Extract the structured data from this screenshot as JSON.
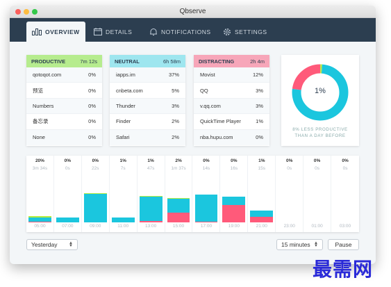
{
  "window": {
    "title": "Qbserve",
    "colors": {
      "close": "#fc605c",
      "minimize": "#fdbc40",
      "zoom": "#34c84a"
    }
  },
  "tabs": [
    {
      "label": "OVERVIEW",
      "icon": "bar-chart-icon"
    },
    {
      "label": "DETAILS",
      "icon": "calendar-icon"
    },
    {
      "label": "NOTIFICATIONS",
      "icon": "bell-icon"
    },
    {
      "label": "SETTINGS",
      "icon": "gear-icon"
    }
  ],
  "categories": [
    {
      "name": "PRODUCTIVE",
      "time": "7m 12s",
      "color": "#b6ec8e",
      "items": [
        {
          "name": "qotoqot.com",
          "pct": "0%"
        },
        {
          "name": "预览",
          "pct": "0%"
        },
        {
          "name": "Numbers",
          "pct": "0%"
        },
        {
          "name": "备忘录",
          "pct": "0%"
        },
        {
          "name": "None",
          "pct": "0%"
        }
      ]
    },
    {
      "name": "NEUTRAL",
      "time": "6h 58m",
      "color": "#9ee6ef",
      "items": [
        {
          "name": "iapps.im",
          "pct": "37%"
        },
        {
          "name": "cnbeta.com",
          "pct": "5%"
        },
        {
          "name": "Thunder",
          "pct": "3%"
        },
        {
          "name": "Finder",
          "pct": "2%"
        },
        {
          "name": "Safari",
          "pct": "2%"
        }
      ]
    },
    {
      "name": "DISTRACTING",
      "time": "2h 4m",
      "color": "#f7a6b9",
      "items": [
        {
          "name": "Movist",
          "pct": "12%"
        },
        {
          "name": "QQ",
          "pct": "3%"
        },
        {
          "name": "v.qq.com",
          "pct": "3%"
        },
        {
          "name": "QuickTime Player",
          "pct": "1%"
        },
        {
          "name": "nba.hupu.com",
          "pct": "0%"
        }
      ]
    }
  ],
  "summary": {
    "percent": "1%",
    "caption_line1": "8% LESS PRODUCTIVE",
    "caption_line2": "THAN A DAY BEFORE",
    "share": {
      "neutral": 0.76,
      "distracting": 0.23,
      "productive": 0.01
    },
    "colors": {
      "neutral": "#1bc6de",
      "distracting": "#ff5a7a",
      "productive": "#b6ec3e"
    }
  },
  "timeline": {
    "slots": [
      {
        "pct": "20%",
        "duration": "3m 34s",
        "time": "05:00",
        "neutral": 0.08,
        "distracting": 0.02,
        "productive": 0.02
      },
      {
        "pct": "0%",
        "duration": "0s",
        "time": "07:00",
        "neutral": 0.1,
        "distracting": 0.0,
        "productive": 0.0
      },
      {
        "pct": "0%",
        "duration": "22s",
        "time": "09:00",
        "neutral": 0.57,
        "distracting": 0.0,
        "productive": 0.02
      },
      {
        "pct": "1%",
        "duration": "7s",
        "time": "11:00",
        "neutral": 0.1,
        "distracting": 0.0,
        "productive": 0.0
      },
      {
        "pct": "1%",
        "duration": "47s",
        "time": "13:00",
        "neutral": 0.49,
        "distracting": 0.03,
        "productive": 0.01
      },
      {
        "pct": "2%",
        "duration": "1m 37s",
        "time": "15:00",
        "neutral": 0.29,
        "distracting": 0.19,
        "productive": 0.01
      },
      {
        "pct": "0%",
        "duration": "14s",
        "time": "17:00",
        "neutral": 0.53,
        "distracting": 0.02,
        "productive": 0.0
      },
      {
        "pct": "0%",
        "duration": "16s",
        "time": "19:00",
        "neutral": 0.17,
        "distracting": 0.35,
        "productive": 0.0
      },
      {
        "pct": "1%",
        "duration": "15s",
        "time": "21:00",
        "neutral": 0.12,
        "distracting": 0.11,
        "productive": 0.0
      },
      {
        "pct": "0%",
        "duration": "0s",
        "time": "23:00",
        "neutral": 0.0,
        "distracting": 0.0,
        "productive": 0.0
      },
      {
        "pct": "0%",
        "duration": "0s",
        "time": "01:00",
        "neutral": 0.0,
        "distracting": 0.0,
        "productive": 0.0
      },
      {
        "pct": "0%",
        "duration": "0s",
        "time": "03:00",
        "neutral": 0.0,
        "distracting": 0.0,
        "productive": 0.0
      }
    ]
  },
  "controls": {
    "day_select": "Yesterday",
    "interval_select": "15 minutes",
    "pause_button": "Pause"
  },
  "watermark": "最需网"
}
